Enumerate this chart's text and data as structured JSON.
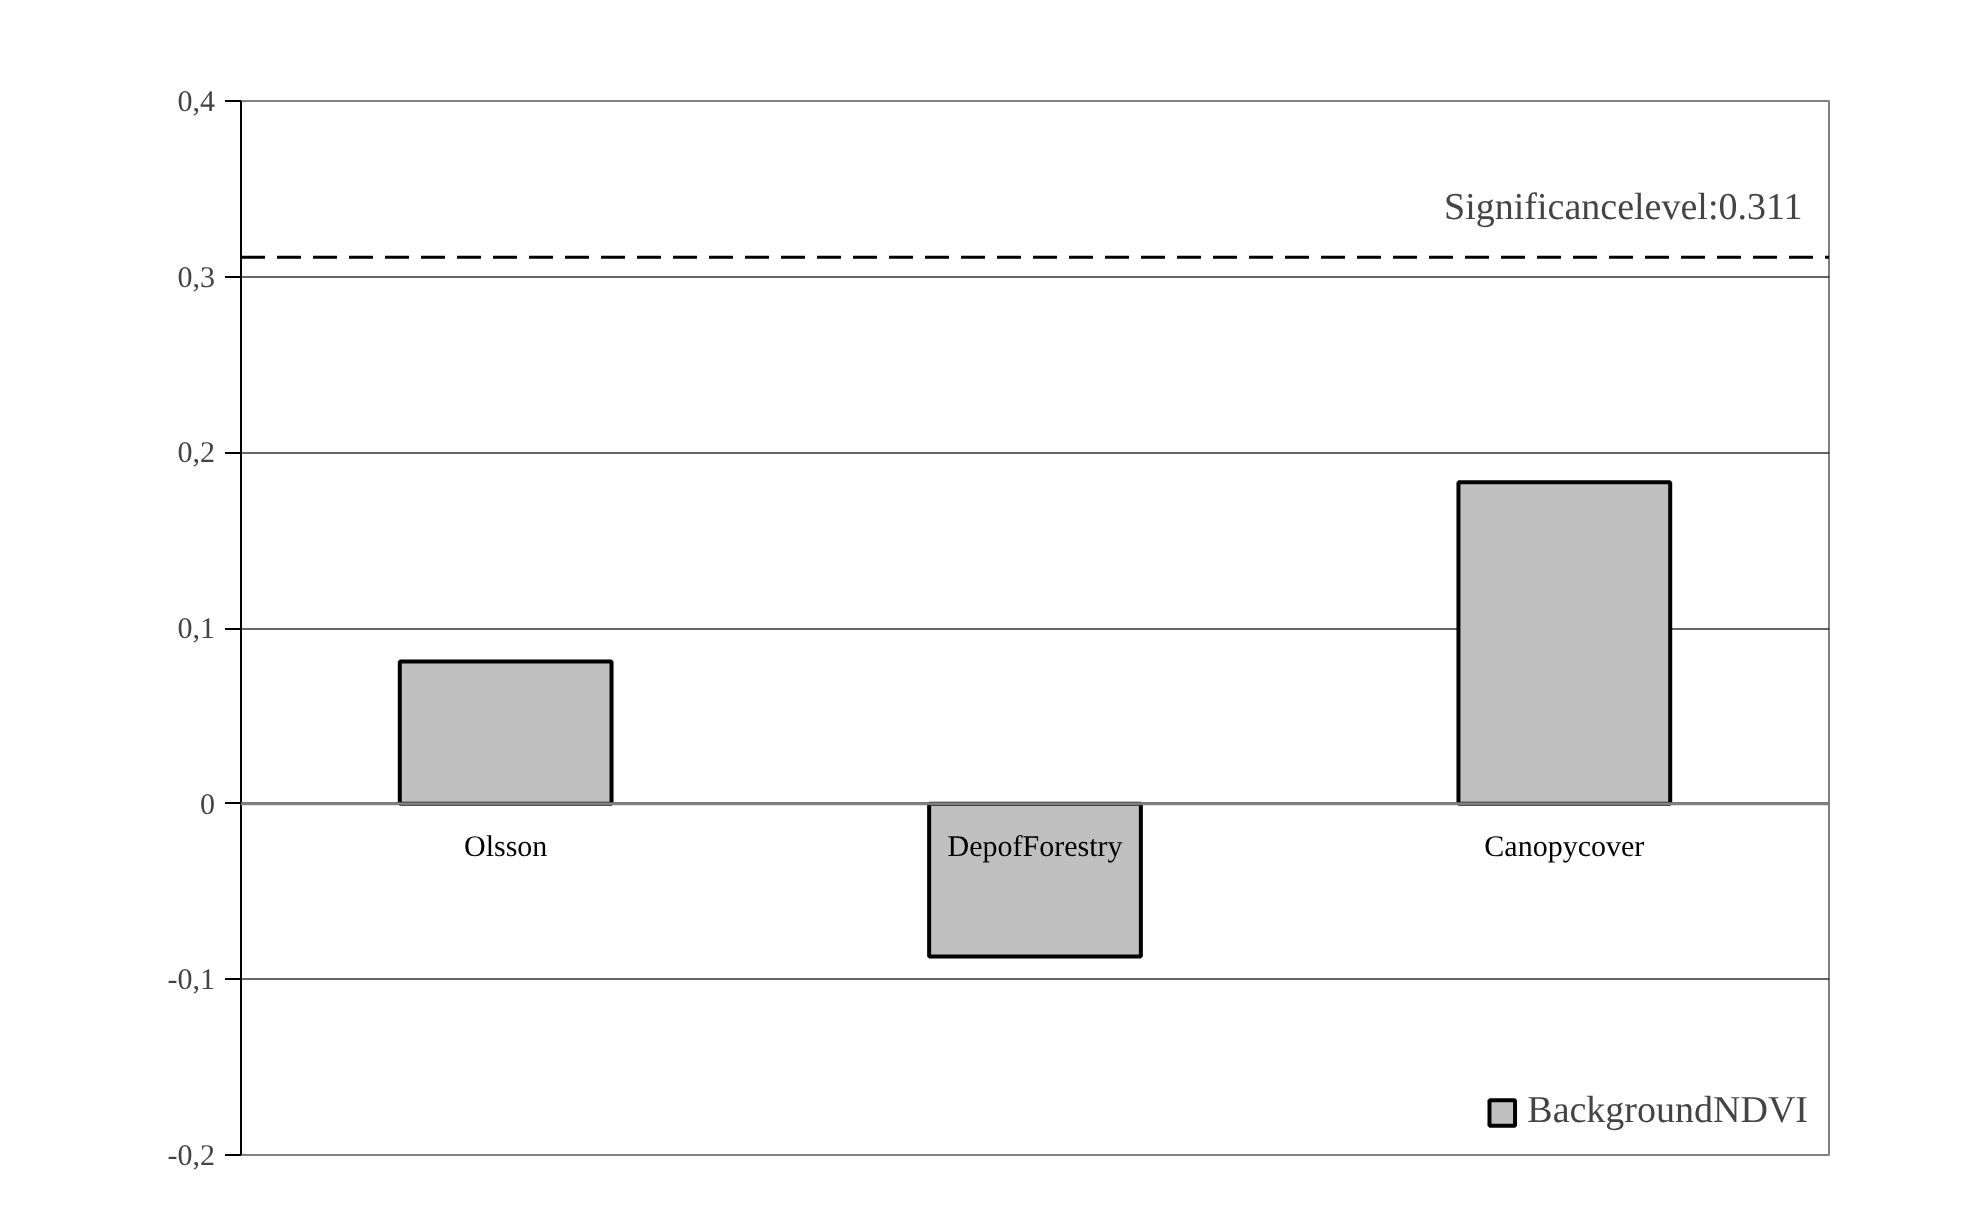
{
  "chart_data": {
    "type": "bar",
    "categories": [
      "Olsson",
      "DepofForestry",
      "Canopycover"
    ],
    "series": [
      {
        "name": "BackgroundNDVI",
        "color": "#c0c0c0",
        "values": [
          0.081,
          -0.087,
          0.183
        ]
      }
    ],
    "ylim": [
      -0.2,
      0.4
    ],
    "yticks": [
      {
        "value": -0.2,
        "label": "-0,2"
      },
      {
        "value": -0.1,
        "label": "-0,1"
      },
      0,
      {
        "value": 0.1,
        "label": "0,1"
      },
      {
        "value": 0.2,
        "label": "0,2"
      },
      {
        "value": 0.3,
        "label": "0,3"
      },
      {
        "value": 0.4,
        "label": "0,4"
      }
    ],
    "ref_lines": [
      {
        "axis": "y",
        "value": 0.311,
        "label": "Significancelevel:0.311",
        "line_style": "dashed",
        "color": "#000000"
      }
    ],
    "grid": "y",
    "legend": "bottom right"
  }
}
